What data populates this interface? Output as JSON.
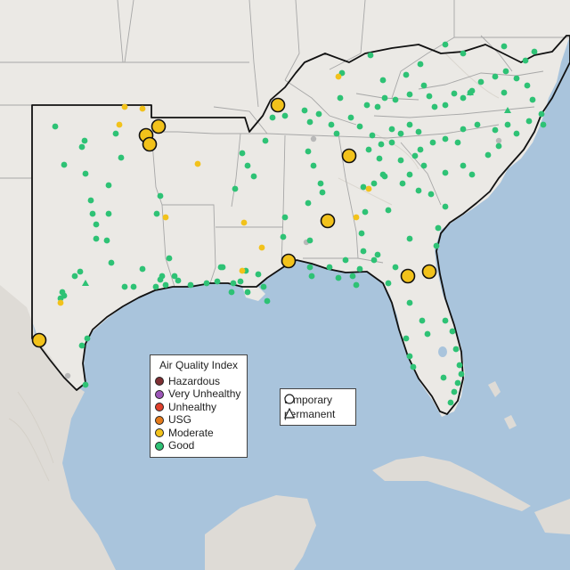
{
  "colors": {
    "ocean": "#a9c4dc",
    "land_us": "#ebe9e5",
    "land_other": "#dedbd6",
    "state_border": "#a7a7a7",
    "region_border": "#111111",
    "terrain": "#c9c4b8"
  },
  "legend": {
    "title": "Air Quality Index",
    "items": [
      {
        "label": "Hazardous",
        "color": "#7e2f33"
      },
      {
        "label": "Very Unhealthy",
        "color": "#9d56b8"
      },
      {
        "label": "Unhealthy",
        "color": "#e0402c"
      },
      {
        "label": "USG",
        "color": "#e57b1a"
      },
      {
        "label": "Moderate",
        "color": "#f2c21b"
      },
      {
        "label": "Good",
        "color": "#2ec275"
      }
    ]
  },
  "type_legend": {
    "items": [
      {
        "label": "temporary",
        "shape": "circle"
      },
      {
        "label": "permanent",
        "shape": "triangle"
      }
    ]
  }
}
